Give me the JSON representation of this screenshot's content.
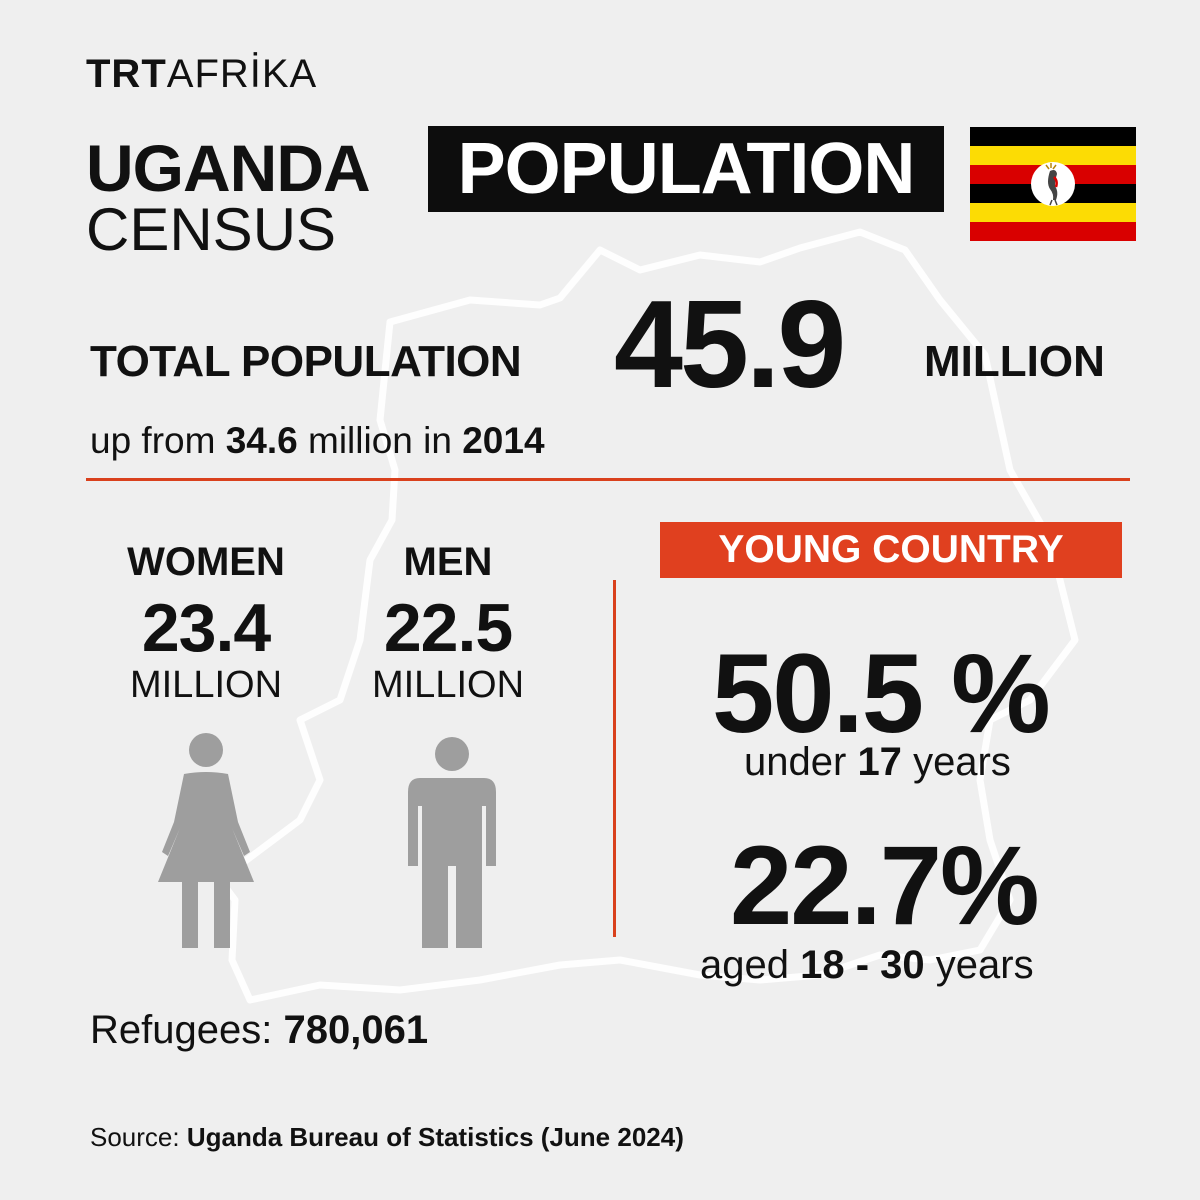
{
  "logo": {
    "trt": "TRT",
    "afrika": "AFRİKA"
  },
  "title": {
    "country": "UGANDA",
    "subject": "POPULATION",
    "kind": "CENSUS"
  },
  "flag": {
    "stripes": [
      "#000000",
      "#fcdc04",
      "#d90000",
      "#000000",
      "#fcdc04",
      "#d90000"
    ],
    "emblem": "grey-crowned-crane-icon"
  },
  "total": {
    "label": "TOTAL POPULATION",
    "value": "45.9",
    "unit": "MILLION"
  },
  "change": {
    "prefix": "up from",
    "previous": "34.6",
    "mid": "million in",
    "year": "2014"
  },
  "women": {
    "label": "WOMEN",
    "value": "23.4",
    "unit": "MILLION"
  },
  "men": {
    "label": "MEN",
    "value": "22.5",
    "unit": "MILLION"
  },
  "refugees": {
    "label": "Refugees:",
    "value": "780,061"
  },
  "young": {
    "heading": "YOUNG COUNTRY",
    "stat1": {
      "value": "50.5 %",
      "pre": "under",
      "age": "17",
      "post": "years"
    },
    "stat2": {
      "value": "22.7%",
      "pre": "aged",
      "age": "18 - 30",
      "post": "years"
    }
  },
  "source": {
    "label": "Source:",
    "text": "Uganda Bureau of Statistics (June 2024)"
  },
  "colors": {
    "accent": "#e0401f",
    "figure": "#9e9e9e",
    "background": "#efefef"
  }
}
